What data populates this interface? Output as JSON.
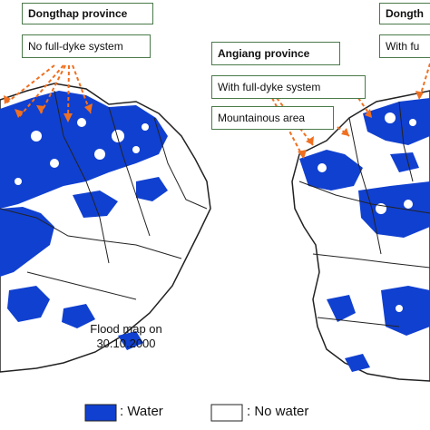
{
  "left_map": {
    "province_label": "Dongthap province",
    "system_label": "No full-dyke system",
    "caption_line1": "Flood map on",
    "caption_line2": "30.10.2000"
  },
  "right_map": {
    "province_label_1": "Angiang province",
    "system_label_1": "With full-dyke system",
    "area_label": "Mountainous area",
    "province_label_2_partial": "Dongth",
    "system_label_2_partial": "With fu"
  },
  "legend": {
    "water_label": ": Water",
    "water_color": "#1040d0",
    "no_water_label": ": No water",
    "no_water_color": "#ffffff"
  },
  "colors": {
    "water": "#1040d0",
    "arrow": "#f07020",
    "label_border": "#4a7a4a",
    "boundary": "#222222"
  }
}
